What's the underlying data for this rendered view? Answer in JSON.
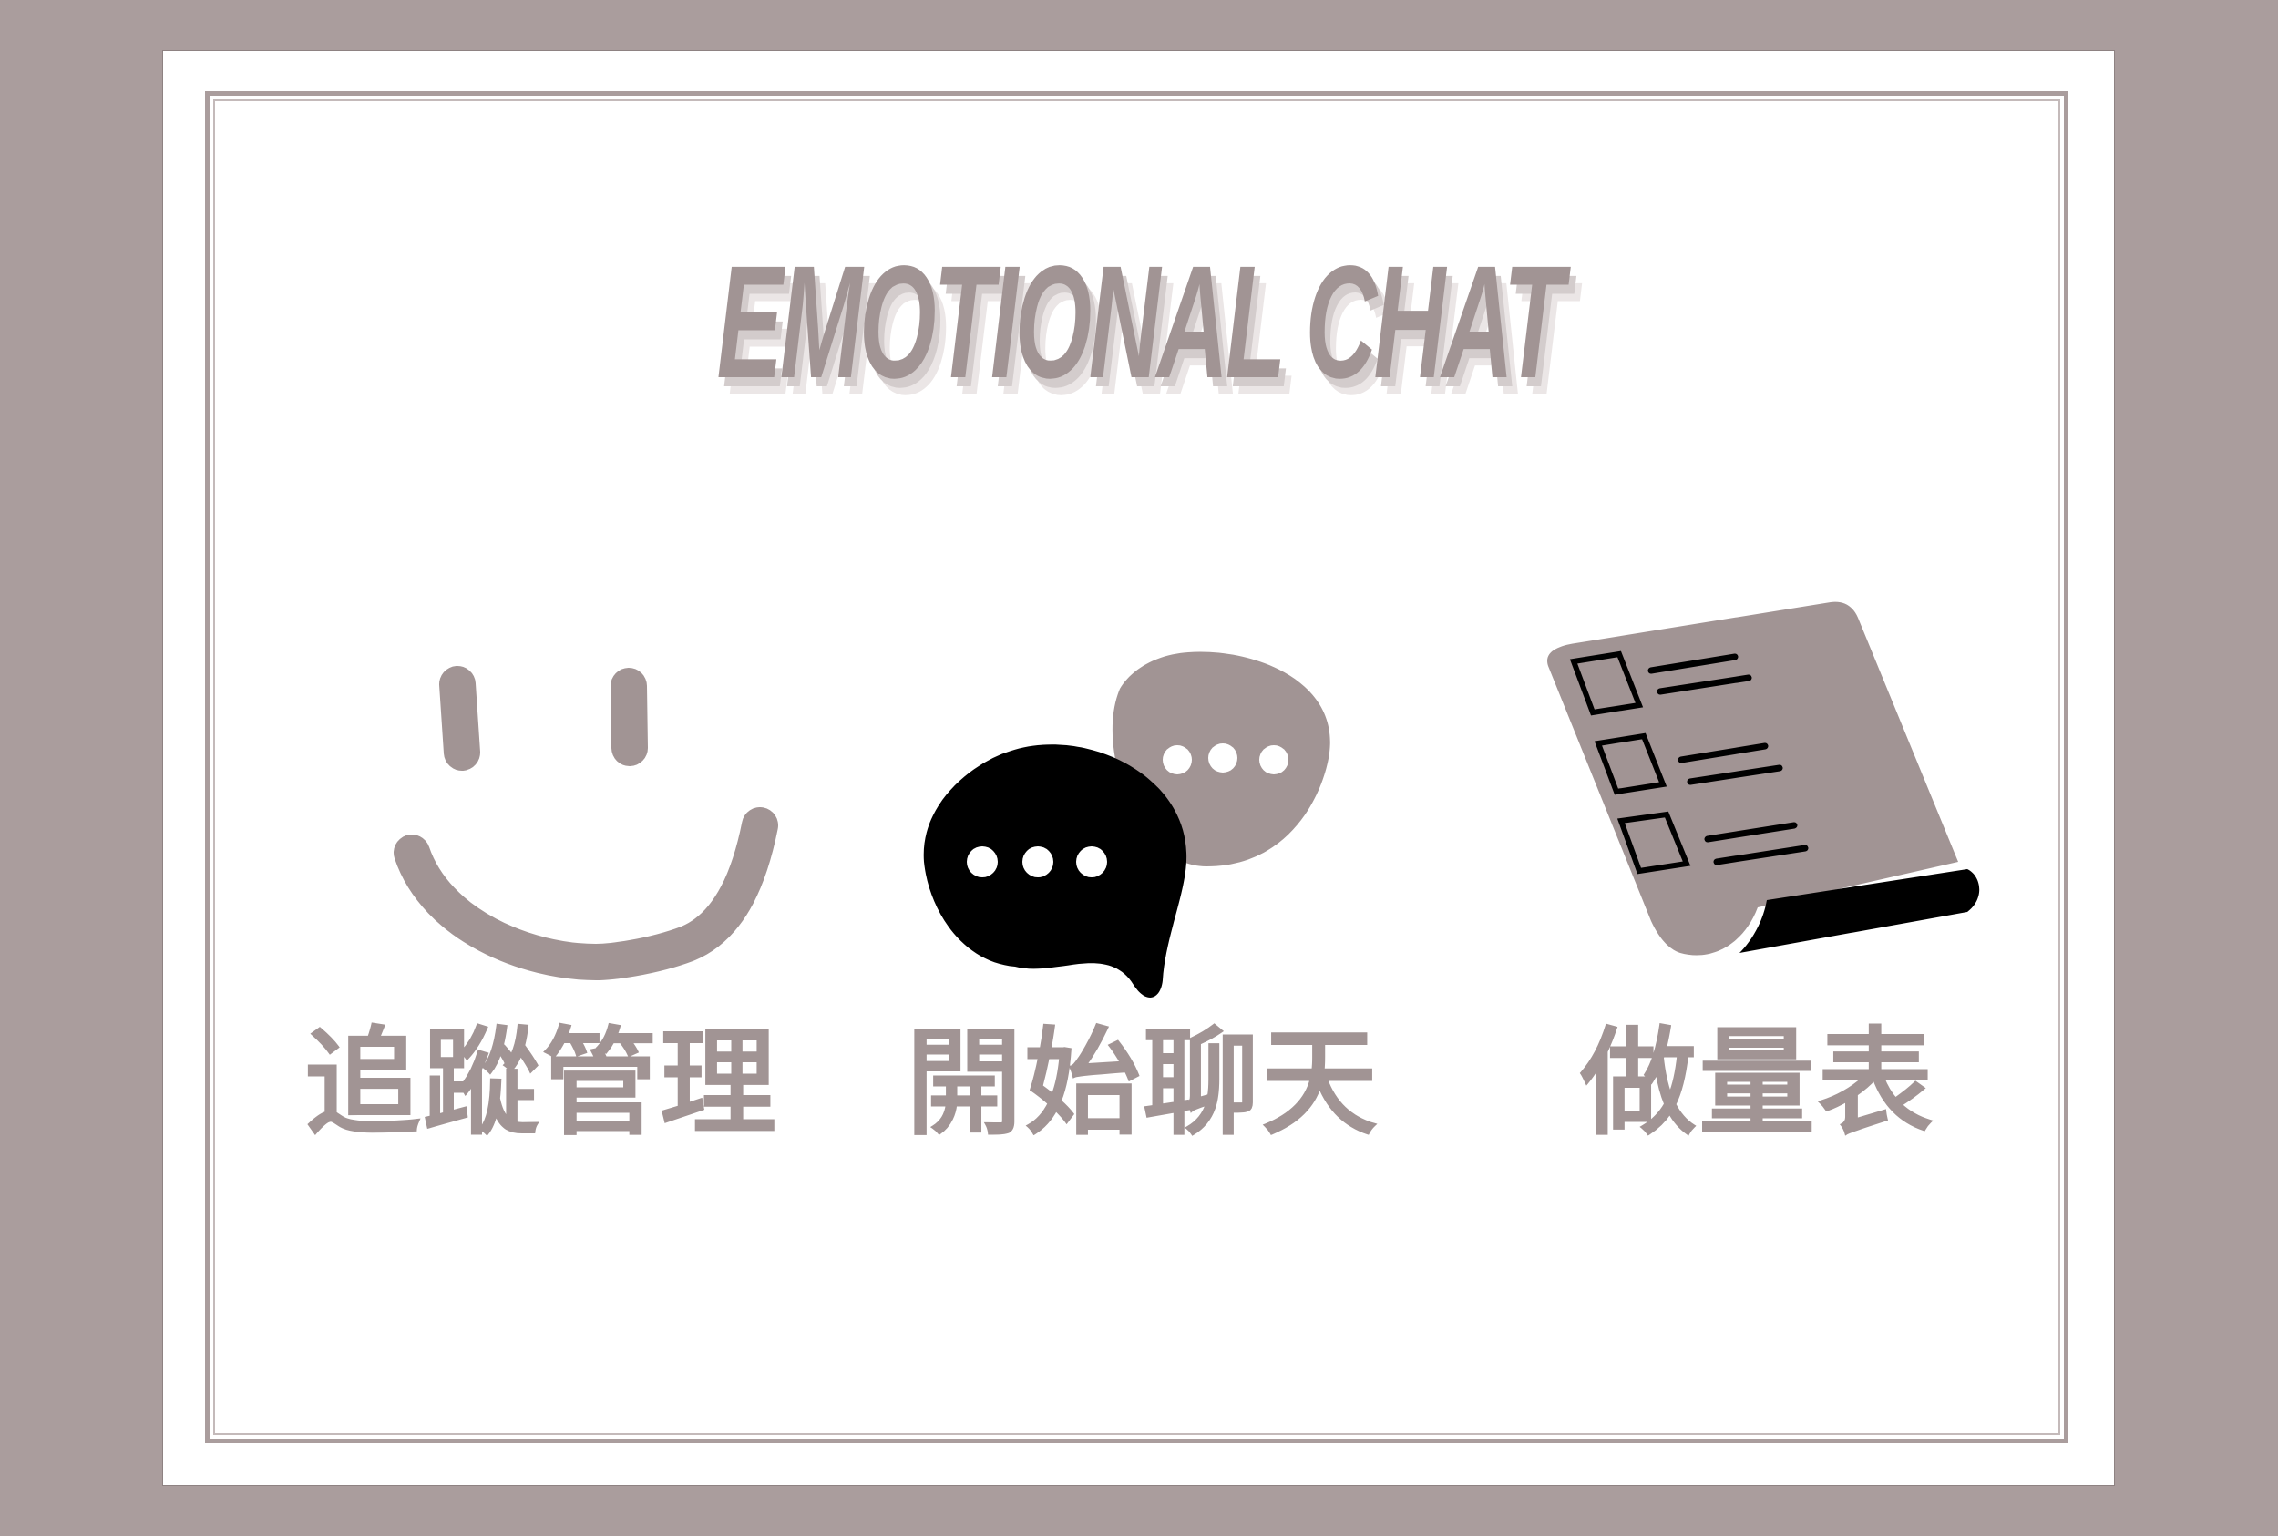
{
  "app": {
    "title": "EMOTIONAL CHAT"
  },
  "menu": {
    "items": [
      {
        "label": "追蹤管理",
        "icon": "smiley-icon"
      },
      {
        "label": "開始聊天",
        "icon": "chat-bubbles-icon"
      },
      {
        "label": "做量表",
        "icon": "questionnaire-scroll-icon"
      }
    ]
  },
  "colors": {
    "background": "#aa9d9d",
    "card": "#ffffff",
    "accent": "#a19494",
    "dark": "#000000"
  }
}
